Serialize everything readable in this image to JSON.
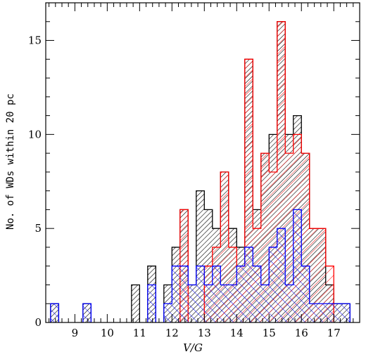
{
  "chart_data": {
    "type": "bar",
    "subtype": "overlaid step histograms with hatched fills",
    "xlabel": "V/G",
    "ylabel": "No. of WDs within 20 pc",
    "xlim": [
      8.1,
      17.8
    ],
    "ylim": [
      0,
      17
    ],
    "bin_width": 0.25,
    "grid": false,
    "legend": "none",
    "x_ticks": [
      9,
      10,
      11,
      12,
      13,
      14,
      15,
      16,
      17
    ],
    "y_ticks": [
      0,
      5,
      10,
      15
    ],
    "series": [
      {
        "color": "#000000",
        "hatch": "dense diagonal (/)",
        "bins": [
          {
            "x": 8.25,
            "y": 1
          },
          {
            "x": 9.25,
            "y": 1
          },
          {
            "x": 10.75,
            "y": 2
          },
          {
            "x": 11.25,
            "y": 3
          },
          {
            "x": 11.75,
            "y": 2
          },
          {
            "x": 12.0,
            "y": 4
          },
          {
            "x": 12.25,
            "y": 6
          },
          {
            "x": 12.5,
            "y": 2
          },
          {
            "x": 12.75,
            "y": 7
          },
          {
            "x": 13.0,
            "y": 6
          },
          {
            "x": 13.25,
            "y": 5
          },
          {
            "x": 13.5,
            "y": 8
          },
          {
            "x": 13.75,
            "y": 5
          },
          {
            "x": 14.0,
            "y": 4
          },
          {
            "x": 14.25,
            "y": 14
          },
          {
            "x": 14.5,
            "y": 6
          },
          {
            "x": 14.75,
            "y": 9
          },
          {
            "x": 15.0,
            "y": 10
          },
          {
            "x": 15.25,
            "y": 16
          },
          {
            "x": 15.5,
            "y": 10
          },
          {
            "x": 15.75,
            "y": 11
          },
          {
            "x": 16.0,
            "y": 9
          },
          {
            "x": 16.25,
            "y": 5
          },
          {
            "x": 16.5,
            "y": 5
          },
          {
            "x": 16.75,
            "y": 2
          },
          {
            "x": 17.0,
            "y": 1
          },
          {
            "x": 17.25,
            "y": 1
          }
        ]
      },
      {
        "color": "#ff0000",
        "hatch": "diagonal (/)",
        "bins": [
          {
            "x": 12.25,
            "y": 6
          },
          {
            "x": 13.0,
            "y": 3
          },
          {
            "x": 13.25,
            "y": 4
          },
          {
            "x": 13.5,
            "y": 8
          },
          {
            "x": 13.75,
            "y": 4
          },
          {
            "x": 14.0,
            "y": 3
          },
          {
            "x": 14.25,
            "y": 14
          },
          {
            "x": 14.5,
            "y": 5
          },
          {
            "x": 14.75,
            "y": 9
          },
          {
            "x": 15.0,
            "y": 8
          },
          {
            "x": 15.25,
            "y": 16
          },
          {
            "x": 15.5,
            "y": 9
          },
          {
            "x": 15.75,
            "y": 10
          },
          {
            "x": 16.0,
            "y": 9
          },
          {
            "x": 16.25,
            "y": 5
          },
          {
            "x": 16.5,
            "y": 5
          },
          {
            "x": 16.75,
            "y": 3
          }
        ]
      },
      {
        "color": "#0000ff",
        "hatch": "diagonal (\\)",
        "bins": [
          {
            "x": 8.25,
            "y": 1
          },
          {
            "x": 9.25,
            "y": 1
          },
          {
            "x": 11.25,
            "y": 2
          },
          {
            "x": 11.75,
            "y": 1
          },
          {
            "x": 12.0,
            "y": 3
          },
          {
            "x": 12.25,
            "y": 3
          },
          {
            "x": 12.5,
            "y": 2
          },
          {
            "x": 12.75,
            "y": 3
          },
          {
            "x": 13.0,
            "y": 2
          },
          {
            "x": 13.25,
            "y": 3
          },
          {
            "x": 13.5,
            "y": 2
          },
          {
            "x": 13.75,
            "y": 2
          },
          {
            "x": 14.0,
            "y": 3
          },
          {
            "x": 14.25,
            "y": 4
          },
          {
            "x": 14.5,
            "y": 3
          },
          {
            "x": 14.75,
            "y": 2
          },
          {
            "x": 15.0,
            "y": 4
          },
          {
            "x": 15.25,
            "y": 5
          },
          {
            "x": 15.5,
            "y": 2
          },
          {
            "x": 15.75,
            "y": 6
          },
          {
            "x": 16.0,
            "y": 3
          },
          {
            "x": 16.25,
            "y": 1
          },
          {
            "x": 16.5,
            "y": 1
          },
          {
            "x": 16.75,
            "y": 1
          },
          {
            "x": 17.0,
            "y": 1
          },
          {
            "x": 17.25,
            "y": 1
          }
        ]
      }
    ]
  }
}
